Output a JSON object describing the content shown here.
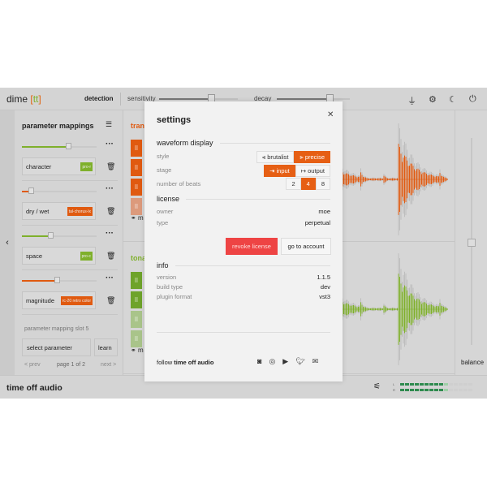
{
  "topbar": {
    "logo_main": "dime",
    "logo_open": "[",
    "logo_tag": "tt",
    "logo_close": "]",
    "mode": "detection",
    "sensitivity_label": "sensitivity",
    "sensitivity_value": 0.65,
    "decay_label": "decay",
    "decay_value": 0.7
  },
  "params": {
    "title": "parameter mappings",
    "mappings": [
      {
        "name": "character",
        "plugin": "pro-r",
        "color": "#7fb02b",
        "value": 0.62
      },
      {
        "name": "dry / wet",
        "plugin": "tal-chorus-lx",
        "color": "#e05a10",
        "value": 0.12
      },
      {
        "name": "space",
        "plugin": "pro-c",
        "color": "#7fb02b",
        "value": 0.38
      },
      {
        "name": "magnitude",
        "plugin": "rc-20 retro color",
        "color": "#e05a10",
        "value": 0.47
      }
    ],
    "slot_label": "parameter mapping slot 5",
    "select_label": "select parameter",
    "learn_label": "learn",
    "prev_label": "< prev",
    "page_label": "page 1 of 2",
    "next_label": "next >"
  },
  "tracks": [
    {
      "name": "tran",
      "color": "#e05a10",
      "footer": "m"
    },
    {
      "name": "tona",
      "color": "#7fb02b",
      "footer": "m"
    }
  ],
  "right": {
    "balance_label": "balance",
    "balance_value": 0.5
  },
  "bottom": {
    "brand": "time off audio",
    "meter_l": "L",
    "meter_r": "R",
    "meter_level": 0.6
  },
  "settings": {
    "title": "settings",
    "close": "✕",
    "waveform_title": "waveform display",
    "style_label": "style",
    "style_options": [
      "brutalist",
      "precise"
    ],
    "style_selected": "precise",
    "stage_label": "stage",
    "stage_options": [
      "input",
      "output"
    ],
    "stage_selected": "input",
    "beats_label": "number of beats",
    "beats_options": [
      "2",
      "4",
      "8"
    ],
    "beats_selected": "4",
    "license_title": "license",
    "owner_label": "owner",
    "owner_value": "moe",
    "type_label": "type",
    "type_value": "perpetual",
    "revoke_label": "revoke license",
    "account_label": "go to account",
    "info_title": "info",
    "version_label": "version",
    "version_value": "1.1.5",
    "build_label": "build type",
    "build_value": "dev",
    "format_label": "plugin format",
    "format_value": "vst3",
    "follow_prefix": "follow",
    "follow_brand": "time off audio"
  }
}
